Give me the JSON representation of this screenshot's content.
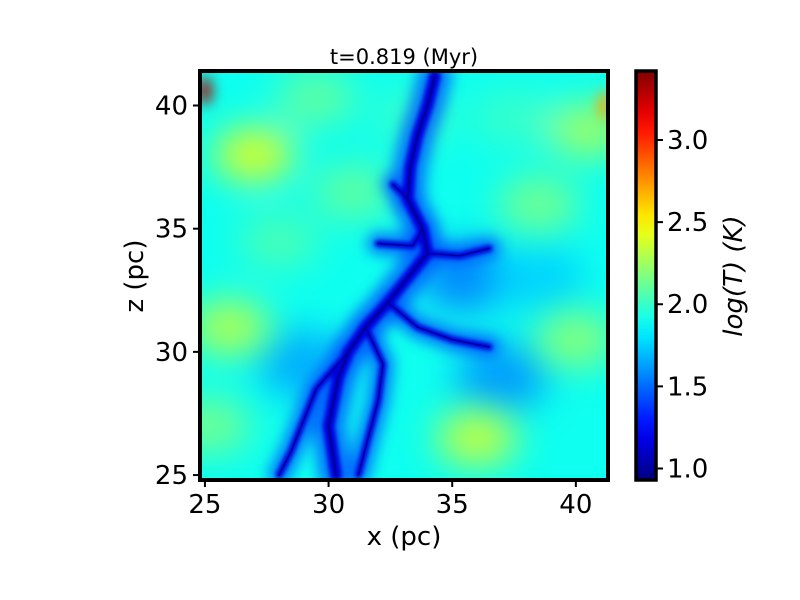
{
  "chart_data": {
    "type": "heatmap",
    "title": "t=0.819 (Myr)",
    "xlabel": "x (pc)",
    "ylabel": "z (pc)",
    "xlim": [
      24.8,
      41.3
    ],
    "ylim": [
      24.8,
      41.4
    ],
    "xticks": [
      25,
      30,
      35,
      40
    ],
    "yticks": [
      25,
      30,
      35,
      40
    ],
    "colorbar": {
      "label": "log(T) (K)",
      "range": [
        0.93,
        3.42
      ],
      "ticks": [
        1.0,
        1.5,
        2.0,
        2.5,
        3.0
      ],
      "colormap": "jet"
    },
    "field_description_values": {
      "background_logT": 1.9,
      "filament_logT": 1.2,
      "warm_patch_logT": 2.4,
      "hot_corner_logT": 3.3
    },
    "warm_patches": [
      {
        "x": 27.0,
        "z": 38.0,
        "logT": 2.4
      },
      {
        "x": 26.0,
        "z": 31.0,
        "logT": 2.3
      },
      {
        "x": 36.0,
        "z": 26.5,
        "logT": 2.35
      },
      {
        "x": 40.0,
        "z": 30.5,
        "logT": 2.2
      },
      {
        "x": 31.0,
        "z": 36.5,
        "logT": 2.1
      },
      {
        "x": 38.5,
        "z": 36.0,
        "logT": 2.15
      },
      {
        "x": 33.5,
        "z": 39.5,
        "logT": 2.0
      },
      {
        "x": 28.0,
        "z": 34.5,
        "logT": 2.05
      },
      {
        "x": 25.2,
        "z": 27.0,
        "logT": 2.15
      },
      {
        "x": 40.5,
        "z": 39.0,
        "logT": 2.25
      },
      {
        "x": 37.5,
        "z": 39.5,
        "logT": 2.0
      },
      {
        "x": 29.5,
        "z": 40.3,
        "logT": 2.1
      }
    ],
    "cool_patches": [
      {
        "x": 35.5,
        "z": 33.0,
        "logT": 1.55
      },
      {
        "x": 37.0,
        "z": 29.0,
        "logT": 1.6
      },
      {
        "x": 29.0,
        "z": 29.5,
        "logT": 1.65
      },
      {
        "x": 38.5,
        "z": 33.0,
        "logT": 1.75
      }
    ],
    "hot_spots": [
      {
        "x": 25.0,
        "z": 40.6,
        "logT": 3.3
      },
      {
        "x": 41.2,
        "z": 40.0,
        "logT": 2.7
      }
    ],
    "filament_path": [
      {
        "x": 34.3,
        "z": 41.2
      },
      {
        "x": 34.0,
        "z": 40.0
      },
      {
        "x": 33.6,
        "z": 38.8
      },
      {
        "x": 33.3,
        "z": 37.5
      },
      {
        "x": 33.2,
        "z": 36.2
      },
      {
        "x": 33.8,
        "z": 35.0
      },
      {
        "x": 34.0,
        "z": 34.0
      },
      {
        "x": 33.2,
        "z": 33.0
      },
      {
        "x": 32.4,
        "z": 32.0
      },
      {
        "x": 31.5,
        "z": 31.0
      },
      {
        "x": 30.8,
        "z": 30.0
      },
      {
        "x": 30.4,
        "z": 29.0
      },
      {
        "x": 30.2,
        "z": 28.0
      },
      {
        "x": 30.0,
        "z": 27.0
      },
      {
        "x": 30.3,
        "z": 25.0
      }
    ],
    "filament_branches": [
      [
        {
          "x": 31.5,
          "z": 31.0
        },
        {
          "x": 32.2,
          "z": 29.5
        },
        {
          "x": 32.0,
          "z": 28.0
        },
        {
          "x": 31.6,
          "z": 26.5
        },
        {
          "x": 31.2,
          "z": 25.0
        }
      ],
      [
        {
          "x": 32.4,
          "z": 32.0
        },
        {
          "x": 33.6,
          "z": 31.0
        },
        {
          "x": 35.0,
          "z": 30.5
        },
        {
          "x": 36.5,
          "z": 30.2
        }
      ],
      [
        {
          "x": 30.8,
          "z": 30.0
        },
        {
          "x": 29.5,
          "z": 28.5
        },
        {
          "x": 28.5,
          "z": 26.0
        },
        {
          "x": 28.0,
          "z": 25.0
        }
      ],
      [
        {
          "x": 33.2,
          "z": 36.2
        },
        {
          "x": 32.6,
          "z": 36.8
        }
      ],
      [
        {
          "x": 33.8,
          "z": 35.0
        },
        {
          "x": 33.4,
          "z": 34.3
        },
        {
          "x": 32.0,
          "z": 34.4
        }
      ],
      [
        {
          "x": 34.0,
          "z": 34.0
        },
        {
          "x": 35.3,
          "z": 33.9
        },
        {
          "x": 36.5,
          "z": 34.2
        }
      ]
    ]
  }
}
